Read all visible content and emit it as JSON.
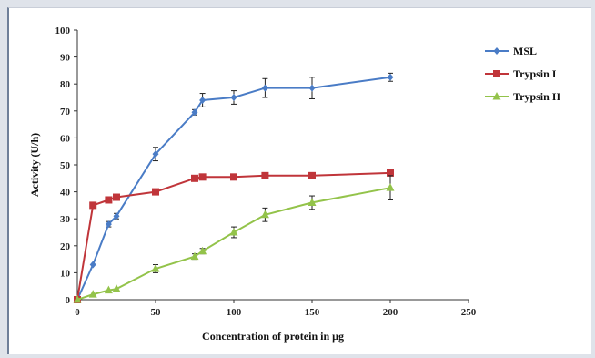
{
  "chart_data": {
    "type": "line",
    "xlabel": "Concentration of protein in μg",
    "ylabel": "Activity (U/h)",
    "xlim": [
      0,
      250
    ],
    "ylim": [
      0,
      100
    ],
    "x_ticks": [
      "0",
      "50",
      "100",
      "150",
      "200",
      "250"
    ],
    "y_ticks": [
      "0",
      "10",
      "20",
      "30",
      "40",
      "50",
      "60",
      "70",
      "80",
      "90",
      "100"
    ],
    "legend_position": "right",
    "grid": false,
    "series": [
      {
        "name": "MSL",
        "color": "#4a7cc6",
        "marker": "diamond",
        "points": [
          {
            "x": 0,
            "y": 0,
            "err": 0
          },
          {
            "x": 10,
            "y": 13,
            "err": 0
          },
          {
            "x": 20,
            "y": 28,
            "err": 1
          },
          {
            "x": 25,
            "y": 31,
            "err": 1
          },
          {
            "x": 50,
            "y": 54,
            "err": 2.5
          },
          {
            "x": 75,
            "y": 69.5,
            "err": 1
          },
          {
            "x": 80,
            "y": 74,
            "err": 2.5
          },
          {
            "x": 100,
            "y": 75,
            "err": 2.5
          },
          {
            "x": 120,
            "y": 78.5,
            "err": 3.5
          },
          {
            "x": 150,
            "y": 78.5,
            "err": 4
          },
          {
            "x": 200,
            "y": 82.5,
            "err": 1.5
          }
        ]
      },
      {
        "name": "Trypsin I",
        "color": "#c0353a",
        "marker": "square",
        "points": [
          {
            "x": 0,
            "y": 0,
            "err": 0
          },
          {
            "x": 10,
            "y": 35,
            "err": 0
          },
          {
            "x": 20,
            "y": 37,
            "err": 0
          },
          {
            "x": 25,
            "y": 38,
            "err": 0
          },
          {
            "x": 50,
            "y": 40,
            "err": 0
          },
          {
            "x": 75,
            "y": 45,
            "err": 0
          },
          {
            "x": 80,
            "y": 45.5,
            "err": 0
          },
          {
            "x": 100,
            "y": 45.5,
            "err": 0
          },
          {
            "x": 120,
            "y": 46,
            "err": 0
          },
          {
            "x": 150,
            "y": 46,
            "err": 0
          },
          {
            "x": 200,
            "y": 47,
            "err": 0
          }
        ]
      },
      {
        "name": "Trypsin II",
        "color": "#93c34a",
        "marker": "triangle",
        "points": [
          {
            "x": 0,
            "y": 0,
            "err": 0
          },
          {
            "x": 10,
            "y": 2,
            "err": 0
          },
          {
            "x": 20,
            "y": 3.5,
            "err": 0
          },
          {
            "x": 25,
            "y": 4,
            "err": 0
          },
          {
            "x": 50,
            "y": 11.5,
            "err": 1.5
          },
          {
            "x": 75,
            "y": 16,
            "err": 1
          },
          {
            "x": 80,
            "y": 18,
            "err": 1
          },
          {
            "x": 100,
            "y": 25,
            "err": 2
          },
          {
            "x": 120,
            "y": 31.5,
            "err": 2.5
          },
          {
            "x": 150,
            "y": 36,
            "err": 2.5
          },
          {
            "x": 200,
            "y": 41.5,
            "err": 4.5
          }
        ]
      }
    ]
  }
}
